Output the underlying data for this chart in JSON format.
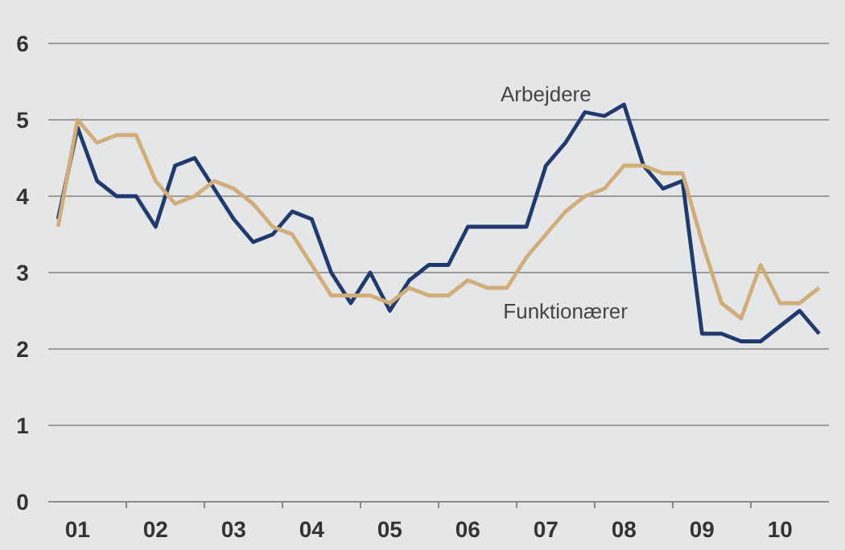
{
  "chart_data": {
    "type": "line",
    "categories": [
      null,
      "01",
      null,
      null,
      null,
      "02",
      null,
      null,
      null,
      "03",
      null,
      null,
      null,
      "04",
      null,
      null,
      null,
      "05",
      null,
      null,
      null,
      "06",
      null,
      null,
      null,
      "07",
      null,
      null,
      null,
      "08",
      null,
      null,
      null,
      "09",
      null,
      null,
      null,
      "10",
      null,
      null
    ],
    "series": [
      {
        "name": "Arbejdere",
        "color": "#1f3a6e",
        "values": [
          3.7,
          4.9,
          4.2,
          4.0,
          4.0,
          3.6,
          4.4,
          4.5,
          4.1,
          3.7,
          3.4,
          3.5,
          3.8,
          3.7,
          3.0,
          2.6,
          3.0,
          2.5,
          2.9,
          3.1,
          3.1,
          3.6,
          3.6,
          3.6,
          3.6,
          4.4,
          4.7,
          5.1,
          5.05,
          5.2,
          4.4,
          4.1,
          4.2,
          2.2,
          2.2,
          2.1,
          2.1,
          2.3,
          2.5,
          2.2
        ]
      },
      {
        "name": "Funktionærer",
        "color": "#d2ad78",
        "values": [
          3.6,
          5.0,
          4.7,
          4.8,
          4.8,
          4.2,
          3.9,
          4.0,
          4.2,
          4.1,
          3.9,
          3.6,
          3.5,
          3.1,
          2.7,
          2.7,
          2.7,
          2.6,
          2.8,
          2.7,
          2.7,
          2.9,
          2.8,
          2.8,
          3.2,
          3.5,
          3.8,
          4.0,
          4.1,
          4.4,
          4.4,
          4.3,
          4.3,
          3.4,
          2.6,
          2.4,
          3.1,
          2.6,
          2.6,
          2.8
        ]
      }
    ],
    "ylim": [
      0,
      6
    ],
    "yticks": [
      0,
      1,
      2,
      3,
      4,
      5,
      6
    ],
    "grid": "y"
  }
}
